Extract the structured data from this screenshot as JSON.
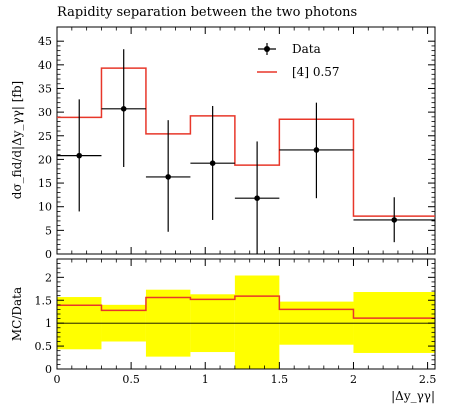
{
  "chart_data": [
    {
      "type": "step-with-errorbars",
      "title": "Rapidity separation between the two photons",
      "ylabel": "dσ_fid/d|Δy_γγ| [fb]",
      "xlabel": "|Δy_γγ|",
      "xlim": [
        0,
        2.55
      ],
      "ylim": [
        0,
        48
      ],
      "x_ticks": [
        "0",
        "0.5",
        "1",
        "1.5",
        "2",
        "2.5"
      ],
      "x_tick_values": [
        0,
        0.5,
        1,
        1.5,
        2,
        2.5
      ],
      "y_ticks": [
        "0",
        "5",
        "10",
        "15",
        "20",
        "25",
        "30",
        "35",
        "40",
        "45"
      ],
      "y_tick_values": [
        0,
        5,
        10,
        15,
        20,
        25,
        30,
        35,
        40,
        45
      ],
      "legend_position": "top-right",
      "bin_edges": [
        0,
        0.3,
        0.6,
        0.9,
        1.2,
        1.5,
        2.0,
        2.55
      ],
      "series": [
        {
          "name": "Data",
          "kind": "points",
          "color": "#000000",
          "x": [
            0.15,
            0.45,
            0.75,
            1.05,
            1.35,
            1.75,
            2.275
          ],
          "values": [
            20.8,
            30.7,
            16.3,
            19.2,
            11.8,
            22.0,
            7.2
          ],
          "err_low": [
            11.8,
            12.3,
            11.6,
            12.0,
            11.8,
            10.2,
            4.7
          ],
          "err_high": [
            11.9,
            12.6,
            12.0,
            12.1,
            12.0,
            10.0,
            4.8
          ]
        },
        {
          "name": "[4] 0.57",
          "kind": "histogram",
          "color": "#e8372a",
          "values": [
            28.9,
            39.3,
            25.4,
            29.2,
            18.8,
            28.5,
            8.0
          ]
        }
      ]
    },
    {
      "type": "ratio-step",
      "ylabel": "MC/Data",
      "xlim": [
        0,
        2.55
      ],
      "ylim": [
        0,
        2.4
      ],
      "y_ticks": [
        "0",
        "0.5",
        "1",
        "1.5",
        "2"
      ],
      "y_tick_values": [
        0,
        0.5,
        1,
        1.5,
        2
      ],
      "bin_edges": [
        0,
        0.3,
        0.6,
        0.9,
        1.2,
        1.5,
        2.0,
        2.55
      ],
      "band_color": "#ffff00",
      "band_low": [
        0.43,
        0.6,
        0.27,
        0.37,
        0.0,
        0.53,
        0.35
      ],
      "band_high": [
        1.57,
        1.4,
        1.73,
        1.63,
        2.04,
        1.47,
        1.68
      ],
      "series": [
        {
          "name": "[4] 0.57",
          "color": "#e8372a",
          "values": [
            1.39,
            1.28,
            1.56,
            1.52,
            1.59,
            1.3,
            1.11
          ]
        }
      ]
    }
  ]
}
